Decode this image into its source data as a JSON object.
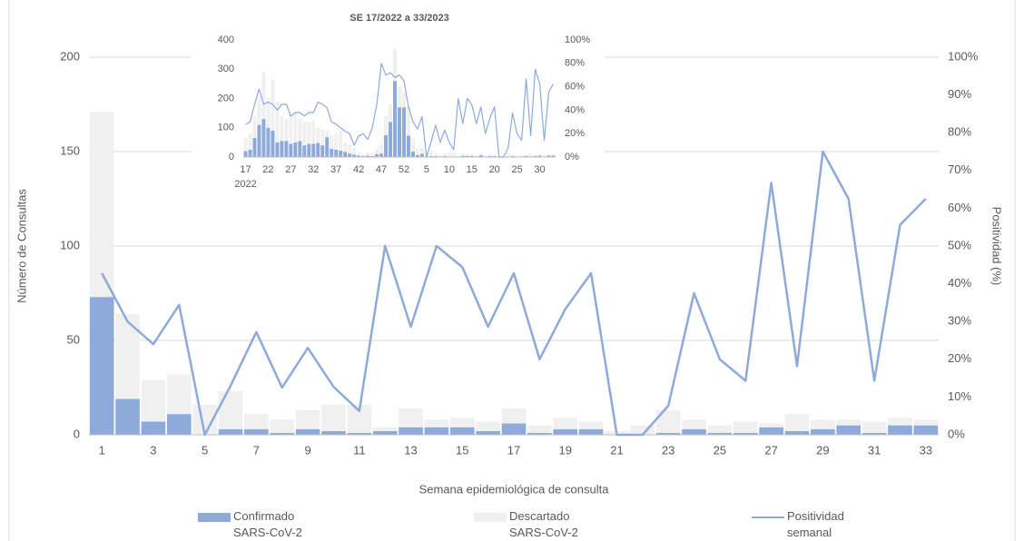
{
  "chart_data": [
    {
      "type": "combo",
      "x_label": "Semana epidemiológica de consulta",
      "y_label": "Número de Consultas",
      "y2_label": "Positividad (%)",
      "categories": [
        1,
        null,
        3,
        null,
        5,
        null,
        7,
        null,
        9,
        null,
        11,
        null,
        13,
        null,
        15,
        null,
        17,
        null,
        19,
        null,
        21,
        null,
        23,
        null,
        25,
        null,
        27,
        null,
        29,
        null,
        31,
        null,
        33
      ],
      "series": [
        {
          "name": "Confirmado SARS-CoV-2",
          "type": "bar",
          "color": "#8eaadb",
          "values": [
            73,
            19,
            7,
            11,
            0,
            3,
            3,
            1,
            3,
            2,
            1,
            2,
            4,
            4,
            4,
            2,
            6,
            1,
            3,
            3,
            0,
            0,
            1,
            3,
            1,
            1,
            4,
            2,
            3,
            5,
            1,
            5,
            5
          ]
        },
        {
          "name": "Descartado SARS-CoV-2",
          "type": "bar",
          "color": "#f0f0f0",
          "values": [
            98,
            45,
            22,
            21,
            16,
            20,
            8,
            7,
            10,
            14,
            15,
            2,
            10,
            4,
            5,
            5,
            8,
            4,
            6,
            4,
            2,
            5,
            12,
            5,
            4,
            6,
            2,
            9,
            5,
            3,
            6,
            4,
            3
          ]
        },
        {
          "name": "Positividad semanal",
          "type": "line",
          "axis": "y2",
          "color": "#8eaadb",
          "values": [
            42.8,
            30,
            24,
            34.4,
            0,
            13,
            27.2,
            12.5,
            23,
            12.7,
            6.3,
            50,
            28.6,
            50,
            44.4,
            28.6,
            42.8,
            20,
            33.3,
            42.8,
            0,
            0,
            7.7,
            37.5,
            20,
            14.3,
            66.7,
            18.2,
            75,
            62.5,
            14.3,
            55.6,
            62.5
          ]
        }
      ],
      "stacked": true,
      "ylim": [
        0,
        200
      ],
      "yticks": [
        0,
        50,
        100,
        150,
        200
      ],
      "y2lim": [
        0,
        100
      ],
      "y2ticks": [
        {
          "value": 0,
          "label": "0%"
        },
        {
          "value": 10,
          "label": "10%"
        },
        {
          "value": 20,
          "label": "20%"
        },
        {
          "value": 30,
          "label": "30%"
        },
        {
          "value": 40,
          "label": "40%"
        },
        {
          "value": 50,
          "label": "50%"
        },
        {
          "value": 60,
          "label": "60%"
        },
        {
          "value": 70,
          "label": "70%"
        },
        {
          "value": 80,
          "label": "80%"
        },
        {
          "value": 90,
          "label": "90%"
        },
        {
          "value": 100,
          "label": "100%"
        }
      ],
      "grid": true,
      "legend": "bottom"
    },
    {
      "type": "combo",
      "title": "SE 17/2022 a 33/2023",
      "x_sublabel": "2022",
      "categories": [
        17,
        null,
        null,
        null,
        null,
        22,
        null,
        null,
        null,
        null,
        27,
        null,
        null,
        null,
        null,
        32,
        null,
        null,
        null,
        null,
        37,
        null,
        null,
        null,
        null,
        42,
        null,
        null,
        null,
        null,
        47,
        null,
        null,
        null,
        null,
        52,
        null,
        null,
        null,
        null,
        5,
        null,
        null,
        null,
        null,
        10,
        null,
        null,
        null,
        null,
        15,
        null,
        null,
        null,
        null,
        20,
        null,
        null,
        null,
        null,
        25,
        null,
        null,
        null,
        null,
        30,
        null,
        null,
        null
      ],
      "series": [
        {
          "type": "bar",
          "color": "#8eaadb",
          "values": [
            20,
            25,
            65,
            110,
            130,
            100,
            90,
            50,
            55,
            55,
            45,
            50,
            55,
            40,
            45,
            45,
            48,
            40,
            68,
            28,
            25,
            22,
            18,
            12,
            8,
            5,
            3,
            5,
            3,
            10,
            12,
            75,
            120,
            260,
            170,
            170,
            73,
            19,
            7,
            11,
            0,
            3,
            3,
            1,
            3,
            2,
            1,
            2,
            4,
            4,
            4,
            2,
            6,
            1,
            3,
            3,
            0,
            0,
            1,
            3,
            1,
            1,
            4,
            2,
            3,
            5,
            1,
            5,
            5
          ]
        },
        {
          "type": "bar",
          "color": "#f0f0f0",
          "values": [
            45,
            55,
            75,
            90,
            160,
            100,
            175,
            140,
            85,
            75,
            95,
            100,
            75,
            80,
            75,
            80,
            52,
            55,
            22,
            47,
            55,
            68,
            32,
            28,
            22,
            10,
            7,
            10,
            12,
            20,
            28,
            65,
            60,
            110,
            70,
            50,
            98,
            45,
            22,
            21,
            16,
            20,
            8,
            7,
            10,
            14,
            15,
            2,
            10,
            4,
            5,
            5,
            8,
            4,
            6,
            4,
            2,
            5,
            12,
            5,
            4,
            6,
            2,
            9,
            5,
            3,
            6,
            4,
            3
          ]
        },
        {
          "type": "line",
          "axis": "y2",
          "color": "#8eaadb",
          "values": [
            28,
            30,
            45,
            58,
            45,
            47,
            45,
            40,
            45,
            45,
            35,
            38,
            38,
            35,
            38,
            38,
            47,
            45,
            42,
            30,
            28,
            25,
            22,
            20,
            10,
            18,
            20,
            15,
            25,
            45,
            80,
            70,
            72,
            68,
            70,
            65,
            42.8,
            30,
            24,
            34.4,
            0,
            13,
            27.2,
            12.5,
            23,
            12.7,
            6.3,
            50,
            28.6,
            50,
            44.4,
            28.6,
            42.8,
            20,
            33.3,
            42.8,
            0,
            0,
            7.7,
            37.5,
            20,
            14.3,
            66.7,
            18.2,
            75,
            62.5,
            14.3,
            55.6,
            62.5
          ]
        }
      ],
      "stacked": true,
      "ylim": [
        0,
        400
      ],
      "yticks": [
        0,
        100,
        200,
        300,
        400
      ],
      "y2lim": [
        0,
        100
      ],
      "y2ticks": [
        {
          "value": 0,
          "label": "0%"
        },
        {
          "value": 20,
          "label": "20%"
        },
        {
          "value": 40,
          "label": "40%"
        },
        {
          "value": 60,
          "label": "60%"
        },
        {
          "value": 80,
          "label": "80%"
        },
        {
          "value": 100,
          "label": "100%"
        }
      ],
      "grid": false
    }
  ]
}
